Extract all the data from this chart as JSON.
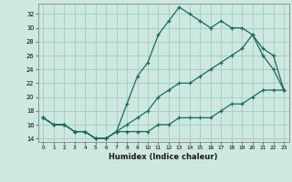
{
  "xlabel": "Humidex (Indice chaleur)",
  "background_color": "#cde8e0",
  "grid_color": "#a8cfc5",
  "line_color": "#1a6b5a",
  "xlim": [
    -0.5,
    23.5
  ],
  "ylim": [
    13.5,
    33.5
  ],
  "yticks": [
    14,
    16,
    18,
    20,
    22,
    24,
    26,
    28,
    30,
    32
  ],
  "xticks": [
    0,
    1,
    2,
    3,
    4,
    5,
    6,
    7,
    8,
    9,
    10,
    11,
    12,
    13,
    14,
    15,
    16,
    17,
    18,
    19,
    20,
    21,
    22,
    23
  ],
  "line1_x": [
    0,
    1,
    2,
    3,
    4,
    5,
    6,
    7,
    8,
    9,
    10,
    11,
    12,
    13,
    14,
    15,
    16,
    17,
    18,
    19,
    20,
    21,
    22,
    23
  ],
  "line1_y": [
    17,
    16,
    16,
    15,
    15,
    14,
    14,
    15,
    19,
    23,
    25,
    29,
    31,
    33,
    32,
    31,
    30,
    31,
    30,
    30,
    29,
    26,
    24,
    21
  ],
  "line2_x": [
    0,
    1,
    2,
    3,
    4,
    5,
    6,
    7,
    8,
    9,
    10,
    11,
    12,
    13,
    14,
    15,
    16,
    17,
    18,
    19,
    20,
    21,
    22,
    23
  ],
  "line2_y": [
    17,
    16,
    16,
    15,
    15,
    14,
    14,
    15,
    16,
    17,
    18,
    20,
    21,
    22,
    22,
    23,
    24,
    25,
    26,
    27,
    29,
    27,
    26,
    21
  ],
  "line3_x": [
    0,
    1,
    2,
    3,
    4,
    5,
    6,
    7,
    8,
    9,
    10,
    11,
    12,
    13,
    14,
    15,
    16,
    17,
    18,
    19,
    20,
    21,
    22,
    23
  ],
  "line3_y": [
    17,
    16,
    16,
    15,
    15,
    14,
    14,
    15,
    15,
    15,
    15,
    16,
    16,
    17,
    17,
    17,
    17,
    18,
    19,
    19,
    20,
    21,
    21,
    21
  ]
}
